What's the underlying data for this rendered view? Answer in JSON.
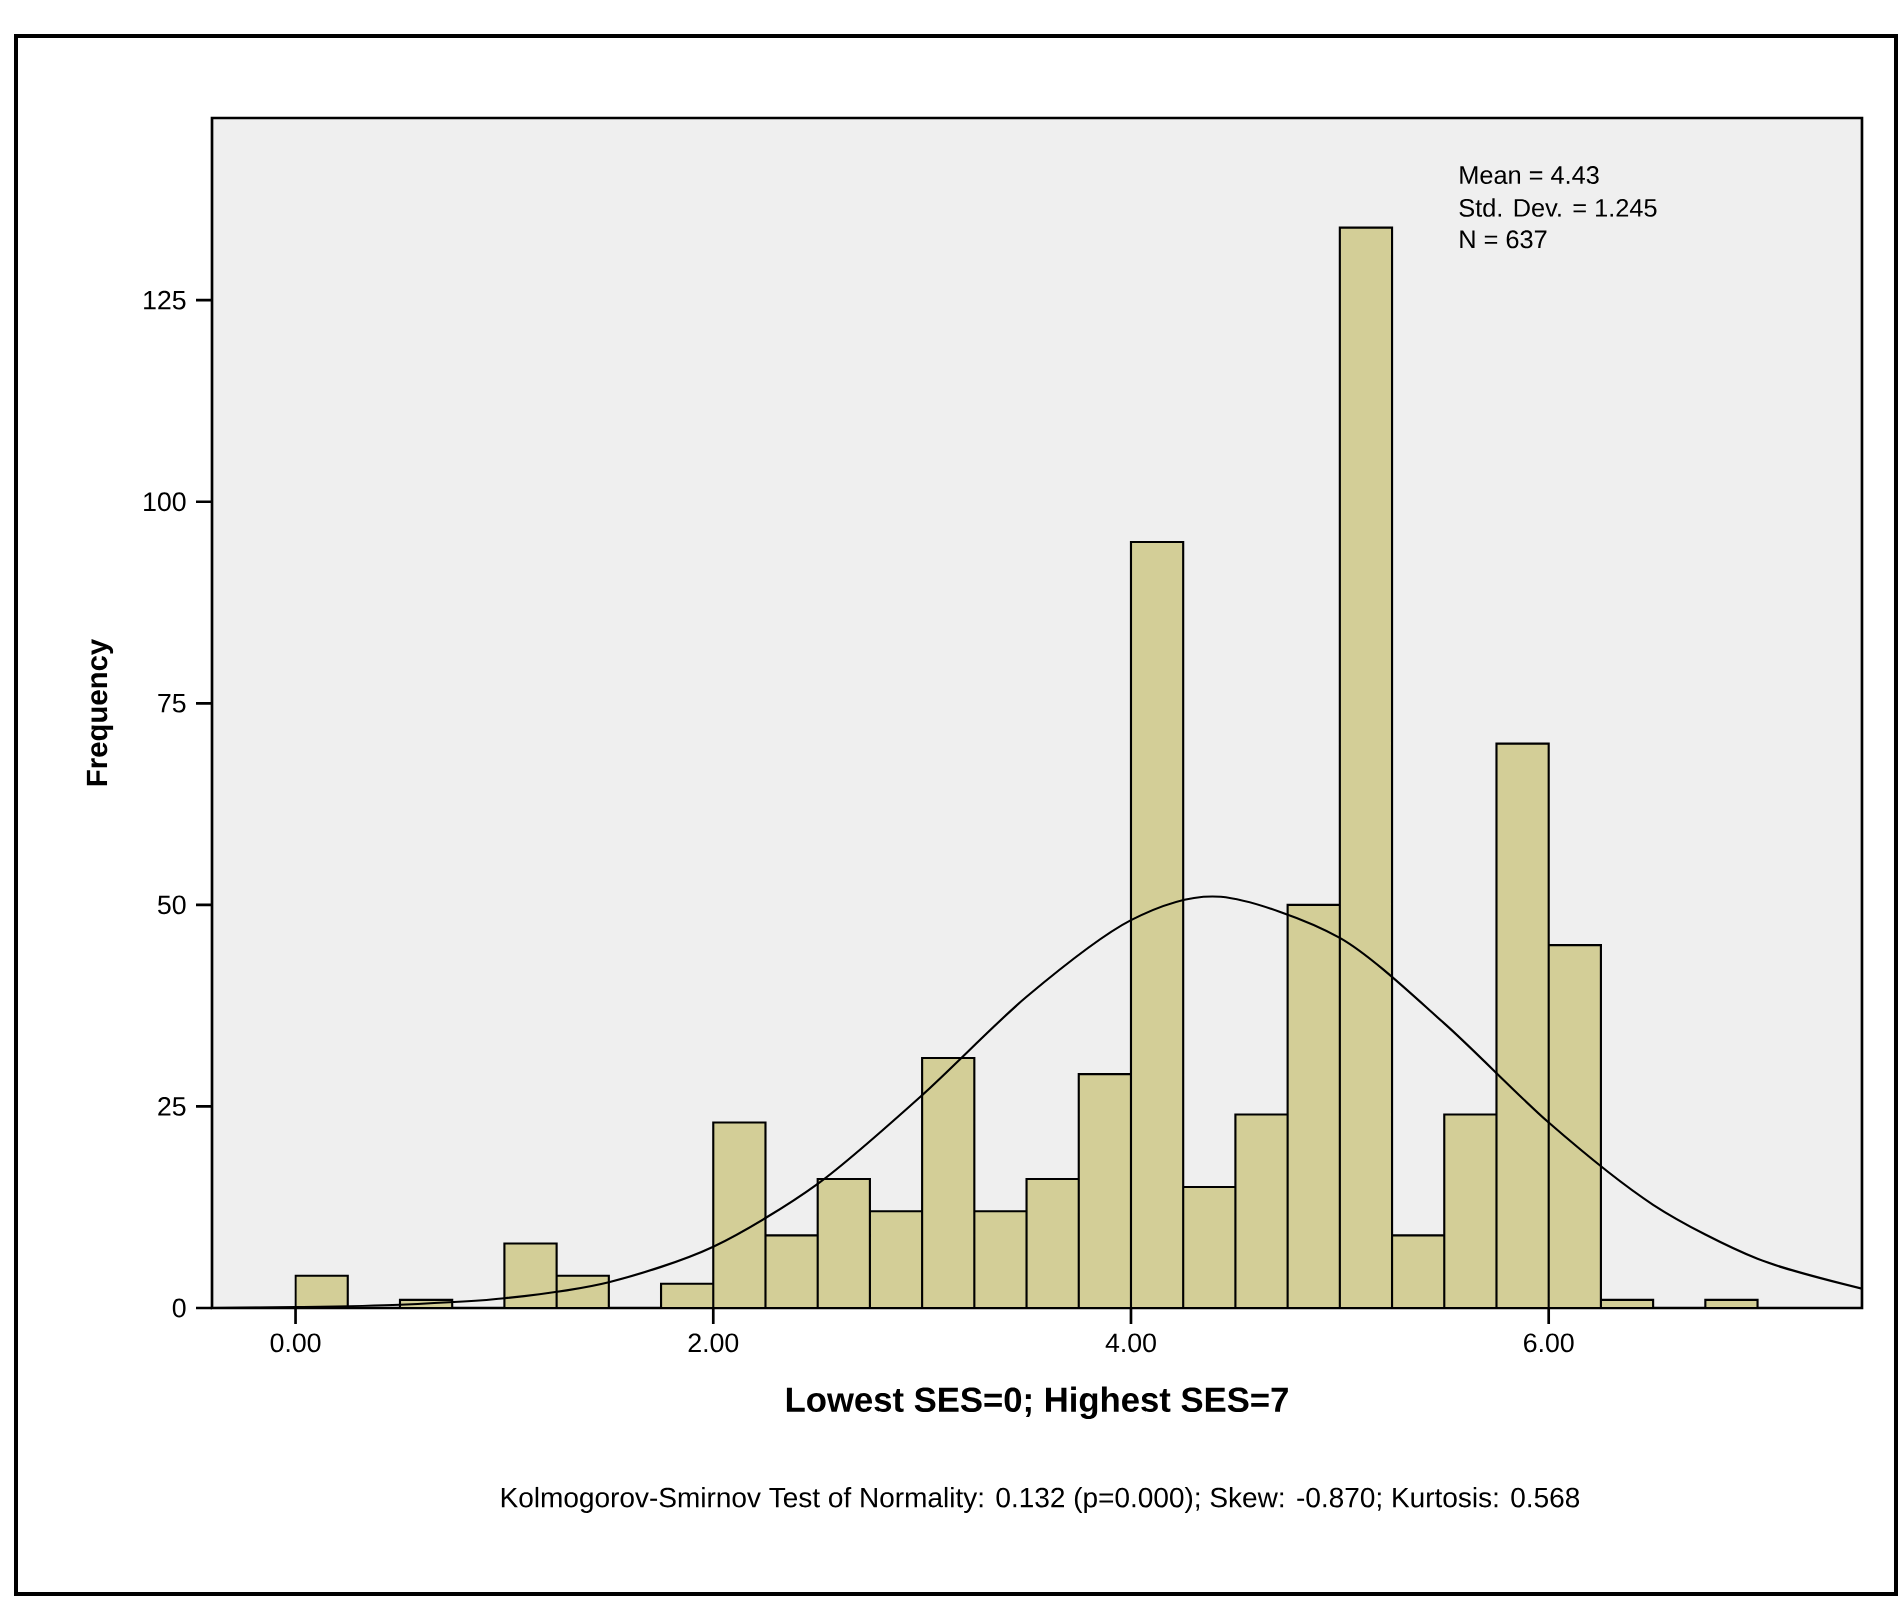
{
  "chart_data": {
    "type": "histogram",
    "xlabel": "Lowest SES=0; Highest SES=7",
    "ylabel": "Frequency",
    "bins": [
      0,
      0.25,
      0.5,
      0.75,
      1.0,
      1.25,
      1.5,
      1.75,
      2.0,
      2.25,
      2.5,
      2.75,
      3.0,
      3.25,
      3.5,
      3.75,
      4.0,
      4.25,
      4.5,
      4.75,
      5.0,
      5.25,
      5.5,
      5.75,
      6.0,
      6.25,
      6.5,
      6.75,
      7.0,
      7.25
    ],
    "values": [
      4,
      0,
      1,
      0,
      8,
      4,
      0,
      3,
      23,
      9,
      16,
      12,
      31,
      12,
      16,
      29,
      95,
      15,
      24,
      50,
      134,
      9,
      24,
      70,
      45,
      1,
      0,
      1,
      0
    ],
    "color": "#d3ce97",
    "series": [
      {
        "type": "line",
        "color": "#000000",
        "x": [
          -0.4,
          0,
          0.5,
          1,
          1.5,
          2,
          2.5,
          3,
          3.5,
          4,
          4.43,
          5,
          5.5,
          6,
          6.5,
          7,
          7.5
        ],
        "values": [
          0,
          0.1,
          0.4,
          1.2,
          3.2,
          7.6,
          15.4,
          26.4,
          38.6,
          48.1,
          51.0,
          45.9,
          35.3,
          23.0,
          12.8,
          6.1,
          2.4
        ]
      }
    ],
    "xlim": [
      -0.4,
      7.5
    ],
    "ylim": [
      0,
      147.6
    ],
    "xticks": [
      {
        "value": 0,
        "label": "0.00"
      },
      {
        "value": 2,
        "label": "2.00"
      },
      {
        "value": 4,
        "label": "4.00"
      },
      {
        "value": 6,
        "label": "6.00"
      }
    ],
    "yticks": [
      0,
      25,
      50,
      75,
      100,
      125
    ],
    "annotations": [
      "Mean = 4.43",
      "Std. Dev. = 1.245",
      "N = 637",
      "Kolmogorov-Smirnov Test of Normality: 0.132 (p=0.000); Skew: -0.870; Kurtosis: 0.568"
    ]
  }
}
